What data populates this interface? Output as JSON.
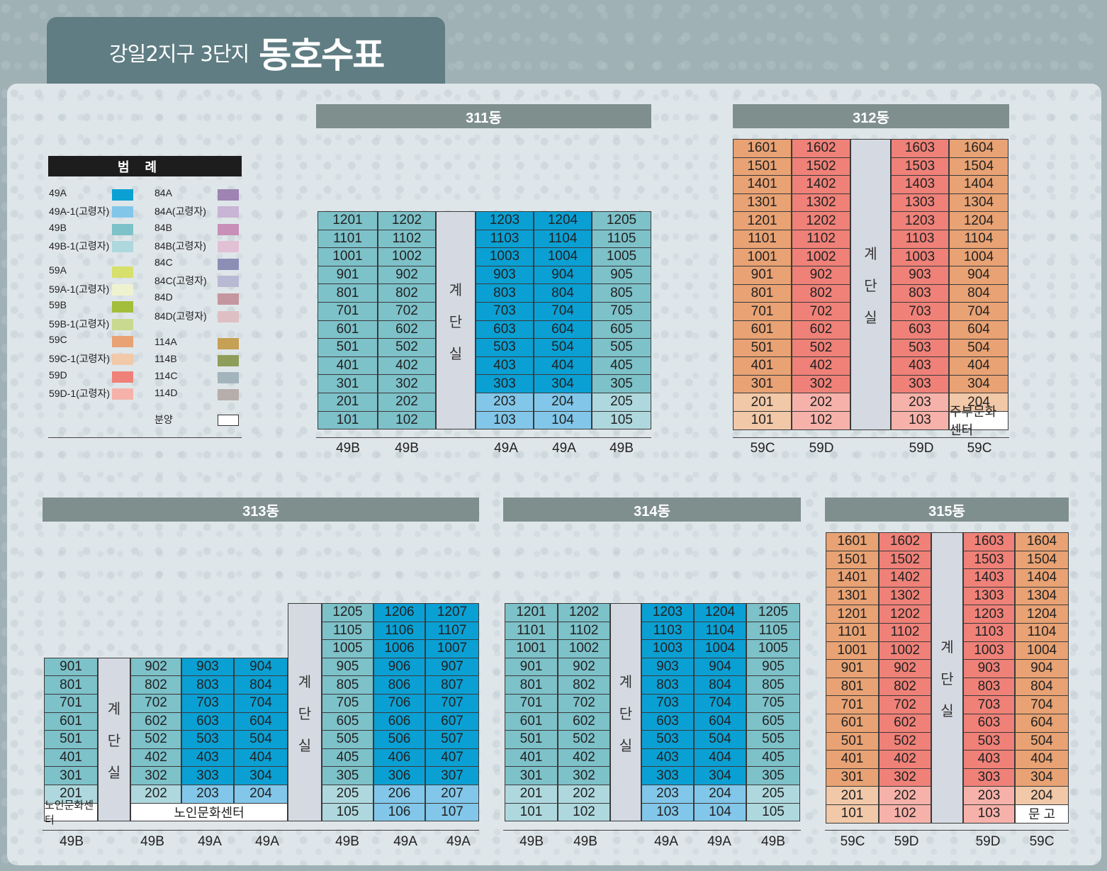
{
  "header": {
    "subtitle": "강일2지구 3단지",
    "title": "동호수표"
  },
  "legend": {
    "title": "범례",
    "items": [
      {
        "label": "49A",
        "color": "#0aa0d4"
      },
      {
        "label": "49A-1(고령자)",
        "color": "#82c7e9"
      },
      {
        "label": "49B",
        "color": "#7dc1c9"
      },
      {
        "label": "49B-1(고령자)",
        "color": "#aed8de"
      },
      {
        "label": "59A",
        "color": "#d6e06b"
      },
      {
        "label": "59A-1(고령자)",
        "color": "#eef2cf"
      },
      {
        "label": "59B",
        "color": "#a3be3a"
      },
      {
        "label": "59B-1(고령자)",
        "color": "#c9d98f"
      },
      {
        "label": "59C",
        "color": "#e8a274"
      },
      {
        "label": "59C-1(고령자)",
        "color": "#f1c8a8"
      },
      {
        "label": "59D",
        "color": "#ef8178"
      },
      {
        "label": "59D-1(고령자)",
        "color": "#f6b2aa"
      },
      {
        "label": "84A",
        "color": "#9e83b3"
      },
      {
        "label": "84A(고령자)",
        "color": "#c8b4d4"
      },
      {
        "label": "84B",
        "color": "#c890b8"
      },
      {
        "label": "84B(고령자)",
        "color": "#e2c0d6"
      },
      {
        "label": "84C",
        "color": "#8b8fb6"
      },
      {
        "label": "84C(고령자)",
        "color": "#b8bad4"
      },
      {
        "label": "84D",
        "color": "#c4979f"
      },
      {
        "label": "84D(고령자)",
        "color": "#dec0c4"
      },
      {
        "label": "114A",
        "color": "#c6a055"
      },
      {
        "label": "114B",
        "color": "#8f9d5a"
      },
      {
        "label": "114C",
        "color": "#a4b4bc"
      },
      {
        "label": "114D",
        "color": "#b7aeac"
      },
      {
        "label": "분양",
        "color": "#ffffff"
      }
    ]
  },
  "stair_label": [
    "계",
    "단",
    "실"
  ],
  "buildings": {
    "b311": {
      "name": "311동",
      "types": [
        "49B",
        "49B",
        "49A",
        "49A",
        "49B"
      ],
      "left": [
        [
          "1201",
          "1202"
        ],
        [
          "1101",
          "1102"
        ],
        [
          "1001",
          "1002"
        ],
        [
          "901",
          "902"
        ],
        [
          "801",
          "802"
        ],
        [
          "701",
          "702"
        ],
        [
          "601",
          "602"
        ],
        [
          "501",
          "502"
        ],
        [
          "401",
          "402"
        ],
        [
          "301",
          "302"
        ],
        [
          "201",
          "202"
        ],
        [
          "101",
          "102"
        ]
      ],
      "right": [
        [
          "1203",
          "1204",
          "1205"
        ],
        [
          "1103",
          "1104",
          "1105"
        ],
        [
          "1003",
          "1004",
          "1005"
        ],
        [
          "903",
          "904",
          "905"
        ],
        [
          "803",
          "804",
          "805"
        ],
        [
          "703",
          "704",
          "705"
        ],
        [
          "603",
          "604",
          "605"
        ],
        [
          "503",
          "504",
          "505"
        ],
        [
          "403",
          "404",
          "405"
        ],
        [
          "303",
          "304",
          "305"
        ],
        [
          "203",
          "204",
          "205"
        ],
        [
          "103",
          "104",
          "105"
        ]
      ]
    },
    "b312": {
      "name": "312동",
      "types": [
        "59C",
        "59D",
        "59D",
        "59C"
      ],
      "left": [
        [
          "1601",
          "1602"
        ],
        [
          "1501",
          "1502"
        ],
        [
          "1401",
          "1402"
        ],
        [
          "1301",
          "1302"
        ],
        [
          "1201",
          "1202"
        ],
        [
          "1101",
          "1102"
        ],
        [
          "1001",
          "1002"
        ],
        [
          "901",
          "902"
        ],
        [
          "801",
          "802"
        ],
        [
          "701",
          "702"
        ],
        [
          "601",
          "602"
        ],
        [
          "501",
          "502"
        ],
        [
          "401",
          "402"
        ],
        [
          "301",
          "302"
        ],
        [
          "201",
          "202"
        ],
        [
          "101",
          "102"
        ]
      ],
      "right": [
        [
          "1603",
          "1604"
        ],
        [
          "1503",
          "1504"
        ],
        [
          "1403",
          "1404"
        ],
        [
          "1303",
          "1304"
        ],
        [
          "1203",
          "1204"
        ],
        [
          "1103",
          "1104"
        ],
        [
          "1003",
          "1004"
        ],
        [
          "903",
          "904"
        ],
        [
          "803",
          "804"
        ],
        [
          "703",
          "704"
        ],
        [
          "603",
          "604"
        ],
        [
          "503",
          "504"
        ],
        [
          "403",
          "404"
        ],
        [
          "303",
          "304"
        ],
        [
          "203",
          "204"
        ],
        [
          "103",
          "주부문화센터"
        ]
      ]
    },
    "b313": {
      "name": "313동",
      "types": [
        "49B",
        "49B",
        "49A",
        "49A",
        "49B",
        "49A",
        "49A"
      ],
      "col1": [
        "901",
        "801",
        "701",
        "601",
        "501",
        "401",
        "301",
        "201",
        "노인문화센터"
      ],
      "mid": [
        [
          "902",
          "903",
          "904"
        ],
        [
          "802",
          "803",
          "804"
        ],
        [
          "702",
          "703",
          "704"
        ],
        [
          "602",
          "603",
          "604"
        ],
        [
          "502",
          "503",
          "504"
        ],
        [
          "402",
          "403",
          "404"
        ],
        [
          "302",
          "303",
          "304"
        ],
        [
          "202",
          "203",
          "204"
        ]
      ],
      "mid_note": "노인문화센터",
      "right": [
        [
          "1205",
          "1206",
          "1207"
        ],
        [
          "1105",
          "1106",
          "1107"
        ],
        [
          "1005",
          "1006",
          "1007"
        ],
        [
          "905",
          "906",
          "907"
        ],
        [
          "805",
          "806",
          "807"
        ],
        [
          "705",
          "706",
          "707"
        ],
        [
          "605",
          "606",
          "607"
        ],
        [
          "505",
          "506",
          "507"
        ],
        [
          "405",
          "406",
          "407"
        ],
        [
          "305",
          "306",
          "307"
        ],
        [
          "205",
          "206",
          "207"
        ],
        [
          "105",
          "106",
          "107"
        ]
      ]
    },
    "b314": {
      "name": "314동",
      "types": [
        "49B",
        "49B",
        "49A",
        "49A",
        "49B"
      ],
      "left": [
        [
          "1201",
          "1202"
        ],
        [
          "1101",
          "1102"
        ],
        [
          "1001",
          "1002"
        ],
        [
          "901",
          "902"
        ],
        [
          "801",
          "802"
        ],
        [
          "701",
          "702"
        ],
        [
          "601",
          "602"
        ],
        [
          "501",
          "502"
        ],
        [
          "401",
          "402"
        ],
        [
          "301",
          "302"
        ],
        [
          "201",
          "202"
        ],
        [
          "101",
          "102"
        ]
      ],
      "right": [
        [
          "1203",
          "1204",
          "1205"
        ],
        [
          "1103",
          "1104",
          "1105"
        ],
        [
          "1003",
          "1004",
          "1005"
        ],
        [
          "903",
          "904",
          "905"
        ],
        [
          "803",
          "804",
          "805"
        ],
        [
          "703",
          "704",
          "705"
        ],
        [
          "603",
          "604",
          "605"
        ],
        [
          "503",
          "504",
          "505"
        ],
        [
          "403",
          "404",
          "405"
        ],
        [
          "303",
          "304",
          "305"
        ],
        [
          "203",
          "204",
          "205"
        ],
        [
          "103",
          "104",
          "105"
        ]
      ]
    },
    "b315": {
      "name": "315동",
      "types": [
        "59C",
        "59D",
        "59D",
        "59C"
      ],
      "left": [
        [
          "1601",
          "1602"
        ],
        [
          "1501",
          "1502"
        ],
        [
          "1401",
          "1402"
        ],
        [
          "1301",
          "1302"
        ],
        [
          "1201",
          "1202"
        ],
        [
          "1101",
          "1102"
        ],
        [
          "1001",
          "1002"
        ],
        [
          "901",
          "902"
        ],
        [
          "801",
          "802"
        ],
        [
          "701",
          "702"
        ],
        [
          "601",
          "602"
        ],
        [
          "501",
          "502"
        ],
        [
          "401",
          "402"
        ],
        [
          "301",
          "302"
        ],
        [
          "201",
          "202"
        ],
        [
          "101",
          "102"
        ]
      ],
      "right": [
        [
          "1603",
          "1604"
        ],
        [
          "1503",
          "1504"
        ],
        [
          "1403",
          "1404"
        ],
        [
          "1303",
          "1304"
        ],
        [
          "1203",
          "1204"
        ],
        [
          "1103",
          "1104"
        ],
        [
          "1003",
          "1004"
        ],
        [
          "903",
          "904"
        ],
        [
          "803",
          "804"
        ],
        [
          "703",
          "704"
        ],
        [
          "603",
          "604"
        ],
        [
          "503",
          "504"
        ],
        [
          "403",
          "404"
        ],
        [
          "303",
          "304"
        ],
        [
          "203",
          "204"
        ],
        [
          "103",
          "문 고"
        ]
      ]
    }
  }
}
